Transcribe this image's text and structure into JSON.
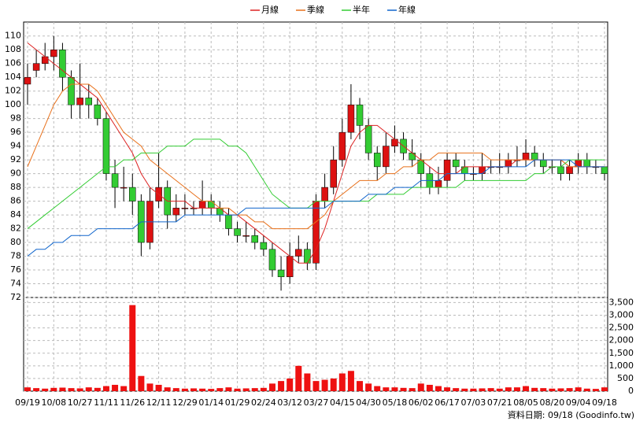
{
  "chart_data": {
    "type": "candlestick",
    "categories": [
      "09/19",
      null,
      null,
      "10/08",
      null,
      null,
      "10/27",
      null,
      null,
      "11/11",
      null,
      null,
      "11/26",
      null,
      null,
      "12/11",
      null,
      null,
      "12/29",
      null,
      null,
      "01/14",
      null,
      null,
      "01/29",
      null,
      null,
      "02/24",
      null,
      null,
      "03/12",
      null,
      null,
      "03/27",
      null,
      null,
      "04/15",
      null,
      null,
      "04/30",
      null,
      null,
      "05/18",
      null,
      null,
      "06/02",
      null,
      null,
      "06/17",
      null,
      null,
      "07/03",
      null,
      null,
      "07/21",
      null,
      null,
      "08/05",
      null,
      null,
      "08/20",
      null,
      null,
      "09/04",
      null,
      null,
      "09/18"
    ],
    "open": [
      103,
      105,
      106,
      107,
      108,
      104,
      100,
      101,
      100,
      98,
      90,
      88,
      88,
      86,
      80,
      86,
      88,
      84,
      85,
      85,
      85,
      86,
      85,
      84,
      82,
      81,
      81,
      80,
      79,
      76,
      75,
      78,
      79,
      77,
      86,
      88,
      92,
      96,
      100,
      97,
      93,
      91,
      94,
      95,
      93,
      92,
      90,
      88,
      89,
      92,
      91,
      90,
      90,
      91,
      91,
      91,
      92,
      92,
      93,
      92,
      91,
      91,
      90,
      91,
      92,
      91,
      91
    ],
    "high": [
      106,
      108,
      109,
      110,
      109,
      105,
      106,
      103,
      101,
      99,
      92,
      91,
      90,
      87,
      88,
      93,
      89,
      87,
      87,
      86,
      89,
      87,
      86,
      85,
      83,
      83,
      82,
      81,
      80,
      78,
      80,
      81,
      80,
      87,
      90,
      94,
      98,
      103,
      101,
      98,
      94,
      96,
      97,
      96,
      95,
      93,
      91,
      91,
      93,
      93,
      92,
      91,
      93,
      92,
      93,
      93,
      94,
      95,
      94,
      93,
      92,
      92,
      92,
      93,
      93,
      92,
      91
    ],
    "low": [
      100,
      104,
      105,
      105,
      102,
      98,
      98,
      98,
      97,
      89,
      85,
      86,
      84,
      78,
      79,
      85,
      82,
      83,
      84,
      84,
      84,
      84,
      83,
      81,
      80,
      80,
      79,
      78,
      75,
      73,
      74,
      77,
      76,
      76,
      85,
      87,
      91,
      95,
      95,
      92,
      89,
      90,
      93,
      92,
      91,
      88,
      87,
      87,
      88,
      90,
      89,
      89,
      89,
      90,
      90,
      90,
      91,
      91,
      91,
      90,
      90,
      89,
      89,
      90,
      90,
      90,
      89
    ],
    "close": [
      104,
      106,
      107,
      108,
      104,
      100,
      101,
      100,
      98,
      90,
      88,
      88,
      86,
      80,
      86,
      88,
      84,
      85,
      85,
      85,
      86,
      85,
      84,
      82,
      81,
      81,
      80,
      79,
      76,
      75,
      78,
      79,
      77,
      86,
      88,
      92,
      96,
      100,
      97,
      93,
      91,
      94,
      95,
      93,
      92,
      90,
      88,
      89,
      92,
      91,
      90,
      90,
      91,
      91,
      91,
      92,
      92,
      93,
      92,
      91,
      91,
      90,
      91,
      92,
      91,
      91,
      90
    ],
    "up_color": "#dd1111",
    "down_color": "#33cc33",
    "ylim": [
      72,
      111
    ],
    "yticks": [
      72,
      74,
      76,
      78,
      80,
      82,
      84,
      86,
      88,
      90,
      92,
      94,
      96,
      98,
      100,
      102,
      104,
      106,
      108,
      110
    ],
    "grid": true,
    "series": [
      {
        "name": "月線",
        "color": "#dd2222",
        "values": [
          109,
          108,
          107,
          106,
          105,
          104,
          103,
          102,
          101,
          99,
          97,
          95,
          93,
          90,
          88,
          87,
          86,
          86,
          86,
          85,
          85,
          85,
          85,
          84,
          84,
          83,
          82,
          81,
          80,
          79,
          78,
          77,
          77,
          79,
          82,
          86,
          90,
          94,
          96,
          97,
          97,
          96,
          95,
          94,
          93,
          92,
          91,
          90,
          90,
          90,
          91,
          91,
          91,
          91,
          91,
          91,
          92,
          92,
          92,
          92,
          92,
          92,
          91,
          91,
          91,
          91,
          91
        ]
      },
      {
        "name": "季線",
        "color": "#e8701a",
        "values": [
          91,
          94,
          97,
          100,
          102,
          103,
          103,
          103,
          102,
          100,
          98,
          96,
          95,
          94,
          92,
          91,
          90,
          89,
          88,
          87,
          86,
          86,
          85,
          85,
          84,
          84,
          83,
          83,
          82,
          82,
          82,
          82,
          82,
          83,
          84,
          86,
          87,
          88,
          89,
          89,
          89,
          90,
          90,
          91,
          91,
          92,
          92,
          93,
          93,
          93,
          93,
          93,
          93,
          92,
          92,
          92,
          92,
          92,
          92,
          92,
          92,
          92,
          91,
          91,
          91,
          91,
          91
        ]
      },
      {
        "name": "半年",
        "color": "#33cc33",
        "values": [
          82,
          83,
          84,
          85,
          86,
          87,
          88,
          89,
          90,
          91,
          91,
          92,
          92,
          93,
          93,
          93,
          94,
          94,
          94,
          95,
          95,
          95,
          95,
          94,
          94,
          93,
          91,
          89,
          87,
          86,
          85,
          85,
          85,
          86,
          86,
          86,
          86,
          86,
          86,
          86,
          87,
          87,
          87,
          87,
          88,
          88,
          88,
          88,
          88,
          88,
          89,
          89,
          89,
          89,
          89,
          89,
          89,
          89,
          90,
          90,
          91,
          91,
          92,
          92,
          92,
          92,
          92
        ]
      },
      {
        "name": "年線",
        "color": "#1166cc",
        "values": [
          78,
          79,
          79,
          80,
          80,
          81,
          81,
          81,
          82,
          82,
          82,
          82,
          82,
          83,
          83,
          83,
          83,
          83,
          84,
          84,
          84,
          84,
          84,
          84,
          84,
          85,
          85,
          85,
          85,
          85,
          85,
          85,
          85,
          85,
          85,
          86,
          86,
          86,
          86,
          87,
          87,
          87,
          88,
          88,
          88,
          89,
          89,
          89,
          90,
          90,
          90,
          90,
          90,
          91,
          91,
          91,
          91,
          91,
          92,
          92,
          92,
          92,
          92,
          91,
          91,
          91,
          91
        ]
      }
    ],
    "volume": {
      "color": "#ee1111",
      "values": [
        150,
        120,
        100,
        130,
        140,
        120,
        110,
        150,
        130,
        200,
        250,
        200,
        3400,
        600,
        300,
        250,
        150,
        120,
        100,
        110,
        100,
        90,
        120,
        150,
        100,
        110,
        120,
        130,
        300,
        400,
        500,
        1000,
        700,
        400,
        450,
        500,
        700,
        800,
        400,
        300,
        200,
        150,
        150,
        130,
        120,
        300,
        250,
        200,
        150,
        120,
        100,
        100,
        110,
        120,
        100,
        150,
        150,
        200,
        130,
        120,
        100,
        110,
        120,
        150,
        100,
        90,
        150
      ],
      "ylim": [
        0,
        3700
      ],
      "yticks": [
        0,
        500,
        {
          "value": 1000,
          "label": "1,000"
        },
        {
          "value": 1500,
          "label": "1,500"
        },
        {
          "value": 2000,
          "label": "2,000"
        },
        {
          "value": 2500,
          "label": "2,500"
        },
        {
          "value": 3000,
          "label": "3,000"
        },
        {
          "value": 3500,
          "label": "3,500"
        }
      ]
    },
    "source": "資料日期: 09/18 (Goodinfo.tw)"
  }
}
